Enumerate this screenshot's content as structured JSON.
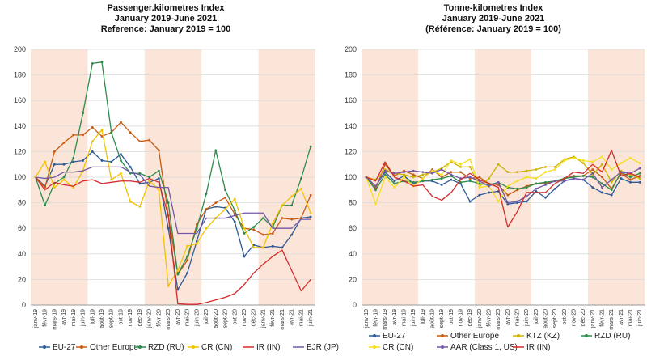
{
  "months": [
    "janv-19",
    "févr-19",
    "mars-19",
    "avr-19",
    "mai-19",
    "juin-19",
    "juil-19",
    "août-19",
    "sept-19",
    "oct-19",
    "nov-19",
    "déc-19",
    "janv-20",
    "févr-20",
    "mars-20",
    "avr-20",
    "mai-20",
    "juin-20",
    "juil-20",
    "août-20",
    "sept-20",
    "oct-20",
    "nov-20",
    "déc-20",
    "janv-21",
    "févr-21",
    "mars-21",
    "avr-21",
    "mai-21",
    "juin-21"
  ],
  "colors": {
    "shade": "#fbe5d8",
    "grid": "#d9d9d9",
    "axis": "#999999"
  },
  "chart_data": [
    {
      "type": "line",
      "title_lines": [
        "Passenger.kilometres Index",
        "January 2019-June 2021",
        "Reference: January 2019 = 100"
      ],
      "ylim": [
        0,
        200
      ],
      "yticks": [
        0,
        20,
        40,
        60,
        80,
        100,
        120,
        140,
        160,
        180,
        200
      ],
      "shaded_ranges": [
        [
          0,
          5
        ],
        [
          12,
          17
        ],
        [
          24,
          29
        ]
      ],
      "series": [
        {
          "name": "EU-27",
          "color": "#2e5a96",
          "marker": "circle",
          "values": [
            100,
            93,
            110,
            110,
            112,
            113,
            120,
            113,
            112,
            118,
            108,
            95,
            96,
            99,
            60,
            12,
            25,
            50,
            75,
            77,
            76,
            65,
            38,
            47,
            45,
            46,
            45,
            55,
            68,
            69
          ]
        },
        {
          "name": "Other Europe",
          "color": "#c55a11",
          "marker": "circle",
          "values": [
            100,
            92,
            120,
            127,
            133,
            133,
            139,
            132,
            135,
            143,
            135,
            128,
            129,
            121,
            70,
            24,
            35,
            63,
            75,
            80,
            84,
            71,
            60,
            59,
            55,
            56,
            68,
            67,
            68,
            86
          ]
        },
        {
          "name": "RZD (RU)",
          "color": "#2e8b4b",
          "marker": "circle",
          "values": [
            100,
            78,
            95,
            100,
            115,
            150,
            189,
            190,
            135,
            113,
            103,
            103,
            100,
            105,
            80,
            24,
            38,
            60,
            87,
            121,
            90,
            74,
            56,
            61,
            68,
            61,
            78,
            78,
            99,
            124
          ]
        },
        {
          "name": "CR (CN)",
          "color": "#f2c200",
          "marker": "circle",
          "values": [
            100,
            112,
            92,
            98,
            92,
            105,
            128,
            137,
            98,
            103,
            81,
            77,
            97,
            90,
            15,
            27,
            46,
            48,
            60,
            68,
            75,
            83,
            60,
            45,
            45,
            64,
            78,
            85,
            91,
            72
          ]
        },
        {
          "name": "IR (IN)",
          "color": "#d42a2a",
          "marker": "none",
          "values": [
            100,
            90,
            96,
            94,
            93,
            97,
            98,
            95,
            96,
            97,
            97,
            96,
            99,
            96,
            70,
            1,
            0.5,
            0.5,
            2,
            4,
            6,
            9,
            16,
            25,
            32,
            38,
            43,
            27,
            11,
            20
          ]
        },
        {
          "name": "EJR (JP)",
          "color": "#7358a6",
          "marker": "none",
          "values": [
            100,
            99,
            100,
            104,
            104,
            105,
            108,
            108,
            108,
            108,
            104,
            102,
            93,
            92,
            92,
            56,
            56,
            56,
            68,
            68,
            68,
            70,
            72,
            72,
            72,
            60,
            60,
            60,
            67,
            67
          ]
        }
      ]
    },
    {
      "type": "line",
      "title_lines": [
        "Tonne-kilometres Index",
        "January 2019-June 2021",
        "(Référence: January 2019 = 100)"
      ],
      "ylim": [
        0,
        200
      ],
      "yticks": [
        0,
        20,
        40,
        60,
        80,
        100,
        120,
        140,
        160,
        180,
        200
      ],
      "shaded_ranges": [
        [
          0,
          5
        ],
        [
          12,
          17
        ],
        [
          24,
          29
        ]
      ],
      "series": [
        {
          "name": "EU-27",
          "color": "#2e5a96",
          "marker": "circle",
          "values": [
            100,
            93,
            104,
            97,
            101,
            95,
            97,
            97,
            94,
            98,
            95,
            81,
            86,
            88,
            89,
            79,
            80,
            81,
            89,
            84,
            91,
            97,
            99,
            98,
            92,
            88,
            86,
            99,
            96,
            96
          ]
        },
        {
          "name": "Other Europe",
          "color": "#c55a11",
          "marker": "circle",
          "values": [
            100,
            91,
            110,
            101,
            105,
            102,
            99,
            106,
            100,
            104,
            104,
            99,
            100,
            95,
            94,
            86,
            90,
            93,
            95,
            95,
            97,
            99,
            101,
            101,
            106,
            100,
            91,
            103,
            98,
            101
          ]
        },
        {
          "name": "KTZ (KZ)",
          "color": "#c9b400",
          "marker": "circle",
          "values": [
            100,
            98,
            106,
            103,
            102,
            100,
            102,
            104,
            107,
            112,
            108,
            108,
            93,
            99,
            110,
            104,
            104,
            105,
            106,
            108,
            108,
            114,
            116,
            111,
            102,
            110,
            96,
            105,
            102,
            99
          ]
        },
        {
          "name": "RZD (RU)",
          "color": "#2e8b4b",
          "marker": "circle",
          "values": [
            100,
            90,
            102,
            95,
            97,
            96,
            97,
            98,
            99,
            101,
            96,
            97,
            95,
            94,
            96,
            92,
            91,
            92,
            95,
            96,
            97,
            99,
            100,
            101,
            100,
            95,
            90,
            104,
            100,
            103
          ]
        },
        {
          "name": "CR (CN)",
          "color": "#f5df1e",
          "marker": "circle",
          "values": [
            100,
            79,
            100,
            92,
            100,
            93,
            99,
            105,
            102,
            113,
            110,
            114,
            92,
            93,
            81,
            93,
            97,
            100,
            99,
            104,
            106,
            113,
            115,
            113,
            112,
            116,
            106,
            111,
            115,
            111
          ]
        },
        {
          "name": "AAR (Class 1, US)",
          "color": "#7358a6",
          "marker": "circle",
          "values": [
            100,
            93,
            105,
            103,
            104,
            105,
            104,
            103,
            106,
            102,
            99,
            100,
            97,
            93,
            96,
            80,
            81,
            85,
            91,
            94,
            97,
            97,
            99,
            98,
            103,
            92,
            98,
            104,
            103,
            107
          ]
        },
        {
          "name": "IR (IN)",
          "color": "#d42a2a",
          "marker": "none",
          "values": [
            100,
            97,
            112,
            100,
            97,
            93,
            94,
            85,
            82,
            88,
            98,
            103,
            98,
            95,
            92,
            61,
            73,
            88,
            88,
            88,
            95,
            99,
            104,
            103,
            110,
            104,
            121,
            101,
            103,
            100
          ]
        }
      ]
    }
  ]
}
